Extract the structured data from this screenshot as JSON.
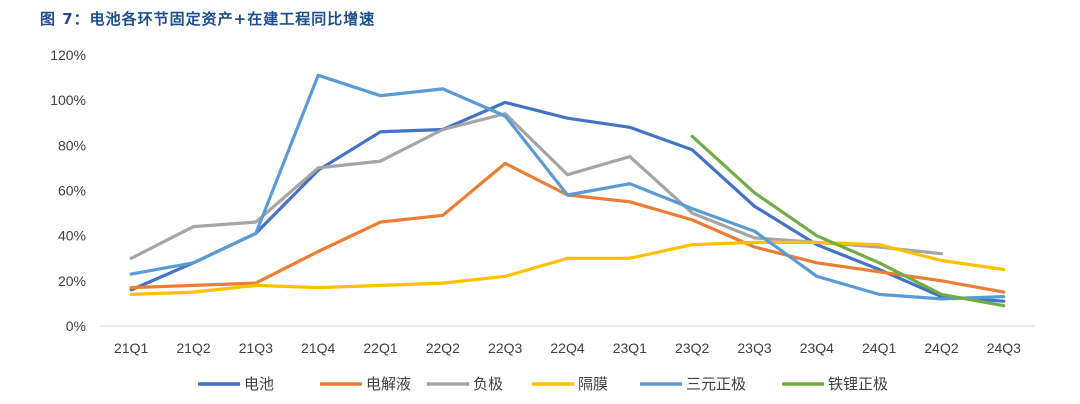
{
  "figure": {
    "caption": "图 7：电池各环节固定资产+在建工程同比增速"
  },
  "colors": {
    "电池": "#4472c4",
    "电解液": "#ed7d31",
    "负极": "#a5a5a5",
    "隔膜": "#ffc000",
    "三元正极": "#5b9bd5",
    "铁锂正极": "#70ad47",
    "axis": "#d9d9d9",
    "caption": "#1f4e8c"
  },
  "chart_data": {
    "type": "line",
    "title": "图 7：电池各环节固定资产+在建工程同比增速",
    "xlabel": "",
    "ylabel": "",
    "ylim": [
      0,
      120
    ],
    "yticks": [
      "0%",
      "20%",
      "40%",
      "60%",
      "80%",
      "100%",
      "120%"
    ],
    "grid": false,
    "legend_position": "bottom",
    "categories": [
      "21Q1",
      "21Q2",
      "21Q3",
      "21Q4",
      "22Q1",
      "22Q2",
      "22Q3",
      "22Q4",
      "23Q1",
      "23Q2",
      "23Q3",
      "23Q4",
      "24Q1",
      "24Q2",
      "24Q3"
    ],
    "series": [
      {
        "name": "电池",
        "values": [
          16,
          28,
          41,
          69,
          86,
          87,
          99,
          92,
          88,
          78,
          53,
          36,
          25,
          13,
          11
        ]
      },
      {
        "name": "电解液",
        "values": [
          17,
          18,
          19,
          33,
          46,
          49,
          72,
          58,
          55,
          47,
          35,
          28,
          24,
          20,
          15
        ]
      },
      {
        "name": "负极",
        "values": [
          30,
          44,
          46,
          70,
          73,
          87,
          94,
          67,
          75,
          50,
          39,
          37,
          35,
          32,
          null
        ]
      },
      {
        "name": "隔膜",
        "values": [
          14,
          15,
          18,
          17,
          18,
          19,
          22,
          30,
          30,
          36,
          37,
          37,
          36,
          29,
          25
        ]
      },
      {
        "name": "三元正极",
        "values": [
          23,
          28,
          41,
          111,
          102,
          105,
          93,
          58,
          63,
          52,
          42,
          22,
          14,
          12,
          13
        ]
      },
      {
        "name": "铁锂正极",
        "values": [
          null,
          null,
          null,
          null,
          null,
          null,
          null,
          null,
          null,
          84,
          59,
          40,
          28,
          14,
          9
        ]
      }
    ]
  }
}
